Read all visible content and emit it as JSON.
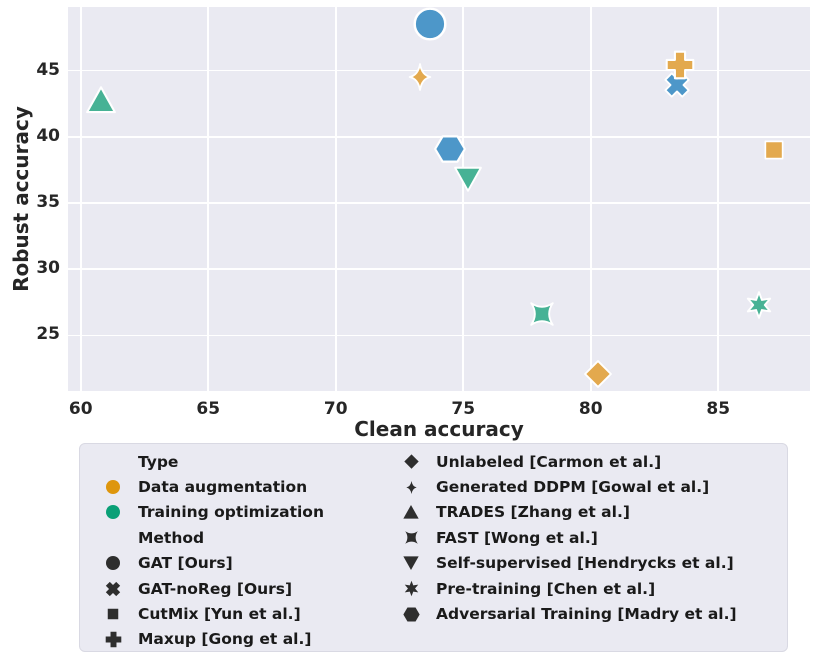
{
  "colors": {
    "plot_bg": "#eaeaf2",
    "grid": "#ffffff",
    "text": "#262626",
    "blue": "#4d97c9",
    "orange": "#e3a94e",
    "green": "#47b295",
    "orange_full": "#de960d",
    "green_full": "#0aa077",
    "dark": "#2e2e2e",
    "marker_edge": "#ffffff"
  },
  "chart_data": {
    "type": "scatter",
    "title": "",
    "xlabel": "Clean accuracy",
    "ylabel": "Robust accuracy",
    "xlim": [
      59.5,
      88.6
    ],
    "ylim": [
      20.8,
      49.8
    ],
    "xticks": [
      60,
      65,
      70,
      75,
      80,
      85
    ],
    "yticks": [
      25,
      30,
      35,
      40,
      45
    ],
    "grid": true,
    "points": [
      {
        "label": "TRADES [Zhang et al.]",
        "x": 60.8,
        "y": 42.8,
        "marker": "triangle-up",
        "color": "green",
        "size": 29
      },
      {
        "label": "Generated DDPM [Gowal et al.]",
        "x": 73.3,
        "y": 44.5,
        "marker": "thin-star4",
        "color": "orange",
        "size": 34,
        "w": 26
      },
      {
        "label": "GAT [Ours]",
        "x": 73.7,
        "y": 48.5,
        "marker": "circle",
        "color": "blue",
        "size": 35
      },
      {
        "label": "Adversarial Training [Madry et al.]",
        "x": 74.5,
        "y": 39.1,
        "marker": "hexagon",
        "color": "blue",
        "size": 31
      },
      {
        "label": "Self-supervised [Hendrycks et al.]",
        "x": 75.2,
        "y": 36.8,
        "marker": "triangle-down",
        "color": "green",
        "size": 27
      },
      {
        "label": "FAST [Wong et al.]",
        "x": 78.1,
        "y": 26.6,
        "marker": "pinwheel",
        "color": "green",
        "size": 26
      },
      {
        "label": "Unlabeled [Carmon et al.]",
        "x": 80.3,
        "y": 22.1,
        "marker": "diamond",
        "color": "orange",
        "size": 27
      },
      {
        "label": "GAT-noReg [Ours]",
        "x": 83.4,
        "y": 43.9,
        "marker": "x",
        "color": "blue",
        "size": 26
      },
      {
        "label": "Maxup [Gong et al.]",
        "x": 83.5,
        "y": 45.4,
        "marker": "plus",
        "color": "orange",
        "size": 29
      },
      {
        "label": "Pre-training [Chen et al.]",
        "x": 86.6,
        "y": 27.3,
        "marker": "star6",
        "color": "green",
        "size": 28
      },
      {
        "label": "CutMix [Yun et al.]",
        "x": 87.2,
        "y": 39.0,
        "marker": "square",
        "color": "orange",
        "size": 23
      }
    ],
    "legend": {
      "columns": [
        {
          "items": [
            {
              "header": true,
              "label": "Type"
            },
            {
              "marker": "circle",
              "color": "orange_full",
              "label": "Data augmentation"
            },
            {
              "marker": "circle",
              "color": "green_full",
              "label": "Training optimization"
            },
            {
              "header": true,
              "label": "Method"
            },
            {
              "marker": "circle",
              "color": "dark",
              "label": "GAT [Ours]"
            },
            {
              "marker": "x",
              "color": "dark",
              "label": "GAT-noReg [Ours]"
            },
            {
              "marker": "square",
              "color": "dark",
              "label": "CutMix [Yun et al.]"
            },
            {
              "marker": "plus",
              "color": "dark",
              "label": "Maxup [Gong et al.]"
            }
          ]
        },
        {
          "items": [
            {
              "marker": "diamond",
              "color": "dark",
              "label": "Unlabeled [Carmon et al.]"
            },
            {
              "marker": "thin-star4",
              "color": "dark",
              "label": "Generated DDPM [Gowal et al.]"
            },
            {
              "marker": "triangle-up",
              "color": "dark",
              "label": "TRADES [Zhang et al.]"
            },
            {
              "marker": "pinwheel",
              "color": "dark",
              "label": "FAST [Wong et al.]"
            },
            {
              "marker": "triangle-down",
              "color": "dark",
              "label": "Self-supervised [Hendrycks et al.]"
            },
            {
              "marker": "star6",
              "color": "dark",
              "label": "Pre-training [Chen et al.]"
            },
            {
              "marker": "hexagon",
              "color": "dark",
              "label": "Adversarial Training [Madry et al.]"
            }
          ]
        }
      ]
    }
  }
}
